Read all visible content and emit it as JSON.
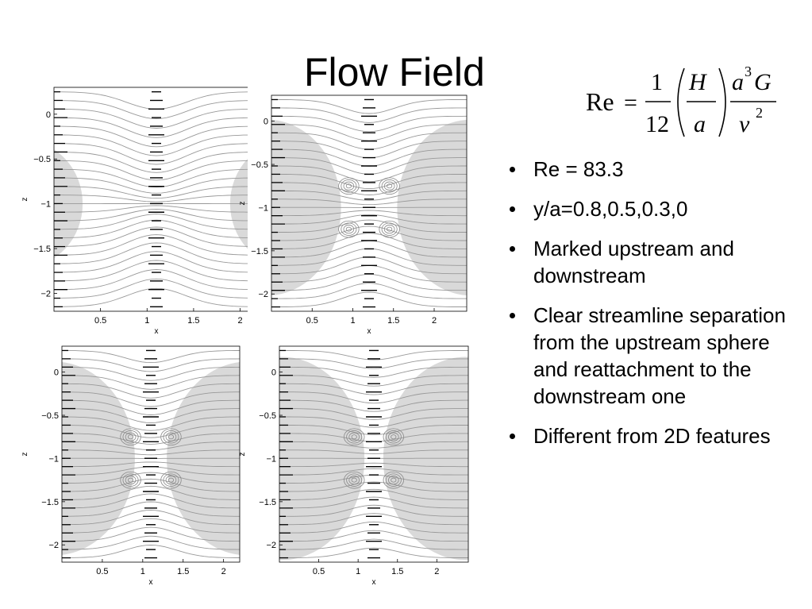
{
  "slide": {
    "title": "Flow Field"
  },
  "formula": {
    "lhs": "Re",
    "equals": "=",
    "num1": "1",
    "den1": "12",
    "num2": "H",
    "den2": "a",
    "num3_base1": "a",
    "num3_exp": "3",
    "num3_base2": "G",
    "den3_base": "ν",
    "den3_exp": "2"
  },
  "bullets": [
    "Re = 83.3",
    "y/a=0.8,0.5,0.3,0",
    "Marked upstream and downstream",
    "Clear streamline separation from the upstream sphere and reattachment to the downstream one",
    "Different from 2D features"
  ],
  "panels": {
    "ytick_labels": [
      "0",
      "−0.5",
      "−1",
      "−1.5",
      "−2"
    ],
    "xtick_labels": [
      "0.5",
      "1",
      "1.5",
      "2"
    ],
    "xlabel": "x",
    "ylabel": "z",
    "sphere_color": "#d9d9d9",
    "streamline_color": "#999999"
  },
  "chart_data": [
    {
      "type": "streamline_plot",
      "panel": "top-left",
      "y_over_a": 0.8,
      "xlabel": "x",
      "ylabel": "z",
      "xticks": [
        0.5,
        1,
        1.5,
        2
      ],
      "yticks": [
        0,
        -0.5,
        -1,
        -1.5,
        -2
      ],
      "xlim": [
        0,
        2.2
      ],
      "ylim": [
        -2.2,
        0.3
      ]
    },
    {
      "type": "streamline_plot",
      "panel": "top-right",
      "y_over_a": 0.5,
      "xlabel": "x",
      "ylabel": "z",
      "xticks": [
        0.5,
        1,
        1.5,
        2
      ],
      "yticks": [
        0,
        -0.5,
        -1,
        -1.5,
        -2
      ],
      "xlim": [
        0,
        2.4
      ],
      "ylim": [
        -2.2,
        0.3
      ]
    },
    {
      "type": "streamline_plot",
      "panel": "bottom-left",
      "y_over_a": 0.3,
      "xlabel": "x",
      "ylabel": "z",
      "xticks": [
        0.5,
        1,
        1.5,
        2
      ],
      "yticks": [
        0,
        -0.5,
        -1,
        -1.5,
        -2
      ],
      "xlim": [
        0,
        2.2
      ],
      "ylim": [
        -2.2,
        0.3
      ]
    },
    {
      "type": "streamline_plot",
      "panel": "bottom-right",
      "y_over_a": 0,
      "xlabel": "x",
      "ylabel": "z",
      "xticks": [
        0.5,
        1,
        1.5,
        2
      ],
      "yticks": [
        0,
        -0.5,
        -1,
        -1.5,
        -2
      ],
      "xlim": [
        0,
        2.4
      ],
      "ylim": [
        -2.2,
        0.3
      ]
    }
  ]
}
